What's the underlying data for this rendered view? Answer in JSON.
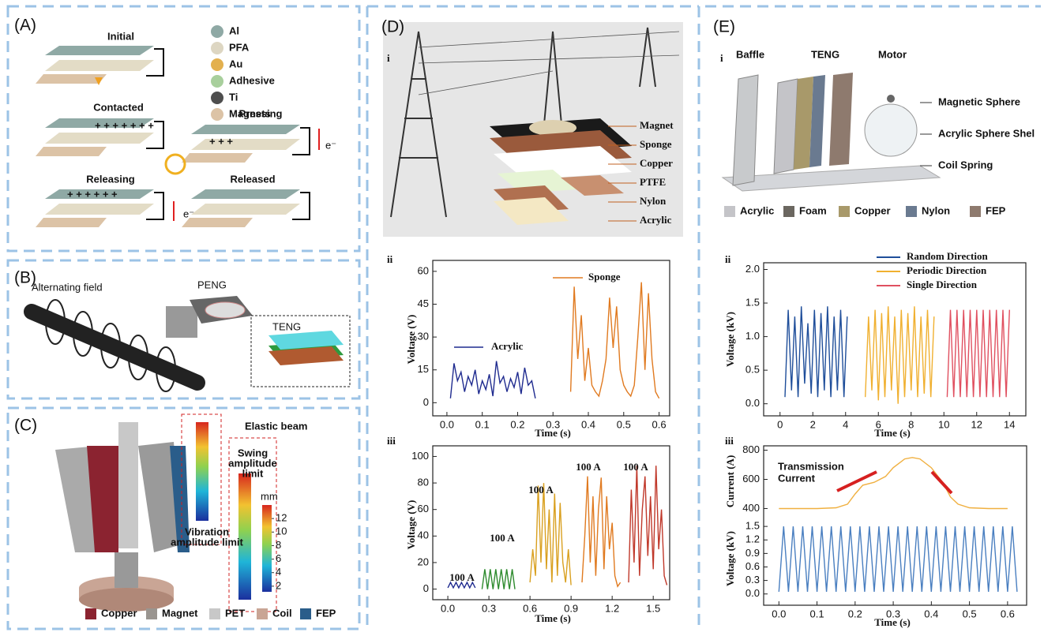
{
  "panels": {
    "A": {
      "label": "(A)",
      "states": [
        "Initial",
        "Contacted",
        "Pressing",
        "Releasing",
        "Released"
      ],
      "legend": [
        {
          "name": "Al",
          "color": "#8fa9a5"
        },
        {
          "name": "PFA",
          "color": "#ddd6c2"
        },
        {
          "name": "Au",
          "color": "#e3b04e"
        },
        {
          "name": "Adhesive",
          "color": "#a8cf9c"
        },
        {
          "name": "Ti",
          "color": "#4e4e4e"
        },
        {
          "name": "Magnets",
          "color": "#dcc3a6"
        }
      ],
      "electron": "e⁻"
    },
    "B": {
      "label": "(B)",
      "field": "Alternating field",
      "peng": "PENG",
      "teng": "TENG"
    },
    "C": {
      "label": "(C)",
      "beam": "Elastic beam",
      "swing": [
        "Swing",
        "amplitude",
        "limit"
      ],
      "vibration": [
        "Vibration",
        "amplitude limit"
      ],
      "unit": "mm",
      "colorbar_ticks": [
        12,
        10,
        8,
        6,
        4,
        2
      ],
      "legend": [
        {
          "name": "Copper",
          "color": "#8b2330"
        },
        {
          "name": "Magnet",
          "color": "#9a9590"
        },
        {
          "name": "PET",
          "color": "#c8c8c8"
        },
        {
          "name": "Coil",
          "color": "#c9a595"
        },
        {
          "name": "FEP",
          "color": "#2a5d8a"
        }
      ]
    },
    "D": {
      "label": "(D)",
      "sub": [
        "i",
        "ii",
        "iii"
      ],
      "layers": [
        "Magnet",
        "Sponge",
        "Copper",
        "PTFE",
        "Nylon",
        "Acrylic"
      ],
      "chart_ii": {
        "type": "line",
        "x_label": "Time (s)",
        "y_label": "Voltage (V)",
        "xlim": [
          -0.04,
          0.63
        ],
        "xticks": [
          {
            "value": 0,
            "label": "0.0"
          },
          0.1,
          0.2,
          0.3,
          0.4,
          0.5,
          0.6
        ],
        "ylim": [
          -6,
          65
        ],
        "yticks": [
          0,
          15,
          30,
          45,
          60
        ],
        "series": [
          {
            "name": "Acrylic",
            "color": "#1f2b8f",
            "x": [
              0.01,
              0.02,
              0.03,
              0.04,
              0.05,
              0.06,
              0.07,
              0.08,
              0.09,
              0.1,
              0.11,
              0.12,
              0.13,
              0.14,
              0.15,
              0.16,
              0.17,
              0.18,
              0.19,
              0.2,
              0.21,
              0.22,
              0.23,
              0.24,
              0.25
            ],
            "values": [
              2,
              18,
              10,
              14,
              5,
              12,
              8,
              15,
              4,
              10,
              6,
              13,
              3,
              19,
              9,
              12,
              5,
              11,
              7,
              14,
              4,
              16,
              8,
              10,
              2
            ]
          },
          {
            "name": "Sponge",
            "color": "#e07a20",
            "x": [
              0.35,
              0.36,
              0.37,
              0.38,
              0.39,
              0.4,
              0.41,
              0.42,
              0.43,
              0.44,
              0.45,
              0.46,
              0.47,
              0.48,
              0.49,
              0.5,
              0.51,
              0.52,
              0.53,
              0.54,
              0.55,
              0.56,
              0.57,
              0.58,
              0.59,
              0.6
            ],
            "values": [
              5,
              53,
              20,
              40,
              10,
              25,
              8,
              5,
              3,
              10,
              20,
              48,
              25,
              44,
              15,
              8,
              5,
              3,
              8,
              30,
              55,
              15,
              50,
              20,
              5,
              2
            ]
          }
        ]
      },
      "chart_iii": {
        "type": "line",
        "x_label": "Time (s)",
        "y_label": "Voltage (V)",
        "xlim": [
          -0.11,
          1.62
        ],
        "xticks": [
          {
            "value": 0,
            "label": "0.0"
          },
          0.3,
          0.6,
          0.9,
          1.2,
          1.5
        ],
        "ylim": [
          -8,
          108
        ],
        "yticks": [
          0,
          20,
          40,
          60,
          80,
          100
        ],
        "series": [
          {
            "name": "100 A",
            "color": "#1f2b8f",
            "x": [
              0,
              0.02,
              0.04,
              0.06,
              0.08,
              0.1,
              0.12,
              0.14,
              0.16,
              0.18,
              0.2
            ],
            "values": [
              1,
              5,
              1,
              5,
              1,
              5,
              1,
              5,
              1,
              5,
              1
            ]
          },
          {
            "name": "100 A",
            "color": "#2e8b2e",
            "x": [
              0.25,
              0.27,
              0.29,
              0.31,
              0.33,
              0.35,
              0.37,
              0.39,
              0.41,
              0.43,
              0.45,
              0.47,
              0.49
            ],
            "values": [
              0,
              15,
              0,
              15,
              0,
              15,
              0,
              15,
              0,
              15,
              0,
              15,
              0
            ]
          },
          {
            "name": "100 A",
            "color": "#d9a020",
            "x": [
              0.6,
              0.62,
              0.64,
              0.66,
              0.68,
              0.7,
              0.72,
              0.74,
              0.76,
              0.78,
              0.8,
              0.82,
              0.84,
              0.86,
              0.88,
              0.9
            ],
            "values": [
              5,
              30,
              10,
              78,
              20,
              80,
              15,
              60,
              5,
              72,
              10,
              65,
              20,
              5,
              30,
              3
            ]
          },
          {
            "name": "100 A",
            "color": "#e07a20",
            "x": [
              0.98,
              1,
              1.02,
              1.04,
              1.06,
              1.08,
              1.1,
              1.12,
              1.14,
              1.16,
              1.18,
              1.2,
              1.22,
              1.24,
              1.26
            ],
            "values": [
              5,
              40,
              85,
              20,
              70,
              10,
              60,
              84,
              15,
              70,
              30,
              50,
              10,
              2,
              5
            ]
          },
          {
            "name": "100 A",
            "color": "#c0392b",
            "x": [
              1.32,
              1.34,
              1.36,
              1.38,
              1.4,
              1.42,
              1.44,
              1.46,
              1.48,
              1.5,
              1.52,
              1.54,
              1.56,
              1.58,
              1.6
            ],
            "values": [
              5,
              75,
              20,
              93,
              10,
              60,
              85,
              25,
              70,
              15,
              93,
              30,
              60,
              10,
              3
            ]
          }
        ]
      }
    },
    "E": {
      "label": "(E)",
      "sub": [
        "i",
        "ii",
        "iii"
      ],
      "parts": [
        "Baffle",
        "TENG",
        "Motor"
      ],
      "callouts": [
        "Magnetic Sphere",
        "Acrylic Sphere Shel",
        "Coil Spring"
      ],
      "legend": [
        {
          "name": "Acrylic",
          "color": "#c4c4c8"
        },
        {
          "name": "Foam",
          "color": "#6b6760"
        },
        {
          "name": "Copper",
          "color": "#a8996a"
        },
        {
          "name": "Nylon",
          "color": "#6a7a90"
        },
        {
          "name": "FEP",
          "color": "#8e7a6e"
        }
      ],
      "chart_ii": {
        "type": "line",
        "x_label": "Time (s)",
        "y_label": "Voltage (kV)",
        "xlim": [
          -1,
          15
        ],
        "xticks": [
          0,
          2,
          4,
          6,
          8,
          10,
          12,
          14
        ],
        "ylim": [
          -0.18,
          2.1
        ],
        "yticks": [
          {
            "value": 0,
            "label": "0.0"
          },
          0.5,
          {
            "value": 1,
            "label": "1.0"
          },
          1.5,
          {
            "value": 2,
            "label": "2.0"
          }
        ],
        "series": [
          {
            "name": "Random Direction",
            "color": "#1f4e9a",
            "x": [
              0.3,
              0.5,
              0.7,
              0.9,
              1.1,
              1.3,
              1.5,
              1.7,
              1.9,
              2.1,
              2.3,
              2.5,
              2.7,
              2.9,
              3.1,
              3.3,
              3.5,
              3.7,
              3.9,
              4.1
            ],
            "values": [
              0.1,
              1.4,
              0.2,
              1.3,
              0.1,
              1.45,
              0.3,
              1.2,
              0.15,
              1.4,
              0.1,
              1.35,
              0.2,
              1.45,
              0.1,
              1.3,
              0.2,
              1.4,
              0.1,
              1.3
            ]
          },
          {
            "name": "Periodic Direction",
            "color": "#f0b030",
            "x": [
              5.2,
              5.4,
              5.6,
              5.8,
              6,
              6.2,
              6.4,
              6.6,
              6.8,
              7,
              7.2,
              7.4,
              7.6,
              7.8,
              8,
              8.2,
              8.4,
              8.6,
              8.8,
              9,
              9.2,
              9.4
            ],
            "values": [
              0.1,
              1.3,
              0.2,
              1.4,
              0.05,
              1.35,
              0.1,
              1.45,
              0.2,
              1.3,
              0,
              1.4,
              0.1,
              1.35,
              0.2,
              1.45,
              0.1,
              1.3,
              0.15,
              1.4,
              0.1,
              1.3
            ]
          },
          {
            "name": "Single Direction",
            "color": "#e05060",
            "x": [
              10.2,
              10.4,
              10.6,
              10.8,
              11,
              11.2,
              11.4,
              11.6,
              11.8,
              12,
              12.2,
              12.4,
              12.6,
              12.8,
              13,
              13.2,
              13.4,
              13.6,
              13.8,
              14
            ],
            "values": [
              0.1,
              1.4,
              0.1,
              1.4,
              0.1,
              1.4,
              0.1,
              1.4,
              0.1,
              1.4,
              0.1,
              1.4,
              0.1,
              1.4,
              0.1,
              1.4,
              0.1,
              1.4,
              0.1,
              1.4
            ]
          }
        ]
      },
      "chart_iii": {
        "type": "line",
        "x_label": "Time (s)",
        "annotation": [
          "Transmission",
          "Current"
        ],
        "xlim": [
          -0.04,
          0.65
        ],
        "xticks": [
          {
            "value": 0,
            "label": "0.0"
          },
          0.1,
          0.2,
          0.3,
          0.4,
          0.5,
          0.6
        ],
        "current": {
          "y_label": "Current (A)",
          "ylim": [
            370,
            830
          ],
          "yticks": [
            400,
            600,
            800
          ],
          "series": [
            {
              "color": "#f0b040",
              "x": [
                0,
                0.1,
                0.15,
                0.18,
                0.2,
                0.22,
                0.25,
                0.28,
                0.3,
                0.33,
                0.35,
                0.37,
                0.4,
                0.43,
                0.45,
                0.47,
                0.5,
                0.55,
                0.6
              ],
              "values": [
                400,
                400,
                405,
                430,
                500,
                560,
                580,
                620,
                680,
                740,
                750,
                740,
                680,
                580,
                480,
                430,
                405,
                400,
                400
              ]
            }
          ]
        },
        "voltage": {
          "y_label": "Voltage (kV)",
          "ylim": [
            -0.25,
            1.8
          ],
          "yticks": [
            {
              "value": 0,
              "label": "0.0"
            },
            0.3,
            0.6,
            0.9,
            1.2,
            1.5
          ],
          "series": [
            {
              "color": "#4a7fc0",
              "x": [
                0,
                0.0125,
                0.025,
                0.0375,
                0.05,
                0.0625,
                0.075,
                0.0875,
                0.1,
                0.1125,
                0.125,
                0.1375,
                0.15,
                0.1625,
                0.175,
                0.1875,
                0.2,
                0.2125,
                0.225,
                0.2375,
                0.25,
                0.2625,
                0.275,
                0.2875,
                0.3,
                0.3125,
                0.325,
                0.3375,
                0.35,
                0.3625,
                0.375,
                0.3875,
                0.4,
                0.4125,
                0.425,
                0.4375,
                0.45,
                0.4625,
                0.475,
                0.4875,
                0.5,
                0.5125,
                0.525,
                0.5375,
                0.55,
                0.5625,
                0.575,
                0.5875,
                0.6,
                0.6125,
                0.625
              ],
              "values": [
                0.05,
                1.5,
                0.05,
                1.5,
                0.05,
                1.5,
                0.05,
                1.5,
                0.05,
                1.5,
                0.05,
                1.5,
                0.05,
                1.5,
                0.05,
                1.5,
                0.05,
                1.5,
                0.05,
                1.5,
                0.05,
                1.5,
                0.05,
                1.5,
                0.05,
                1.5,
                0.05,
                1.5,
                0.05,
                1.5,
                0.05,
                1.5,
                0.05,
                1.5,
                0.05,
                1.5,
                0.05,
                1.5,
                0.05,
                1.5,
                0.05,
                1.5,
                0.05,
                1.5,
                0.05,
                1.5,
                0.05,
                1.5,
                0.05,
                1.5,
                0.05
              ]
            }
          ]
        }
      }
    }
  }
}
